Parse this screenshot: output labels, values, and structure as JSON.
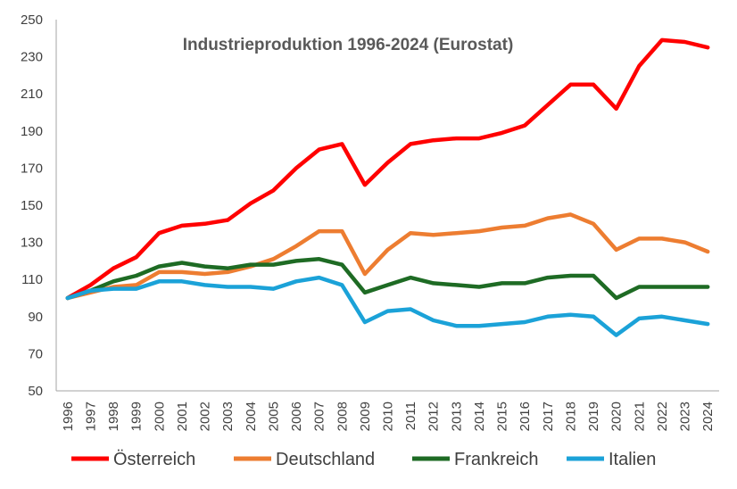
{
  "chart_data": {
    "type": "line",
    "title": "Industrieproduktion 1996-2024 (Eurostat)",
    "xlabel": "",
    "ylabel": "",
    "ylim": [
      50,
      250
    ],
    "yticks": [
      50,
      70,
      90,
      110,
      130,
      150,
      170,
      190,
      210,
      230,
      250
    ],
    "grid": false,
    "legend": "bottom",
    "categories": [
      "1996",
      "1997",
      "1998",
      "1999",
      "2000",
      "2001",
      "2002",
      "2003",
      "2004",
      "2005",
      "2006",
      "2007",
      "2008",
      "2009",
      "2010",
      "2011",
      "2012",
      "2013",
      "2014",
      "2015",
      "2016",
      "2017",
      "2018",
      "2019",
      "2020",
      "2021",
      "2022",
      "2023",
      "2024"
    ],
    "series": [
      {
        "name": "Österreich",
        "color": "#ff0000",
        "values": [
          100,
          107,
          116,
          122,
          135,
          139,
          140,
          142,
          151,
          158,
          170,
          180,
          183,
          161,
          173,
          183,
          185,
          186,
          186,
          189,
          193,
          204,
          215,
          215,
          202,
          225,
          239,
          238,
          235
        ]
      },
      {
        "name": "Deutschland",
        "color": "#ed7d31",
        "values": [
          100,
          103,
          106,
          107,
          114,
          114,
          113,
          114,
          117,
          121,
          128,
          136,
          136,
          113,
          126,
          135,
          134,
          135,
          136,
          138,
          139,
          143,
          145,
          140,
          126,
          132,
          132,
          130,
          125
        ]
      },
      {
        "name": "Frankreich",
        "color": "#1e6b24",
        "values": [
          100,
          104,
          109,
          112,
          117,
          119,
          117,
          116,
          118,
          118,
          120,
          121,
          118,
          103,
          107,
          111,
          108,
          107,
          106,
          108,
          108,
          111,
          112,
          112,
          100,
          106,
          106,
          106,
          106
        ]
      },
      {
        "name": "Italien",
        "color": "#1ba2d8",
        "values": [
          100,
          104,
          105,
          105,
          109,
          109,
          107,
          106,
          106,
          105,
          109,
          111,
          107,
          87,
          93,
          94,
          88,
          85,
          85,
          86,
          87,
          90,
          91,
          90,
          80,
          89,
          90,
          88,
          86
        ]
      }
    ]
  }
}
